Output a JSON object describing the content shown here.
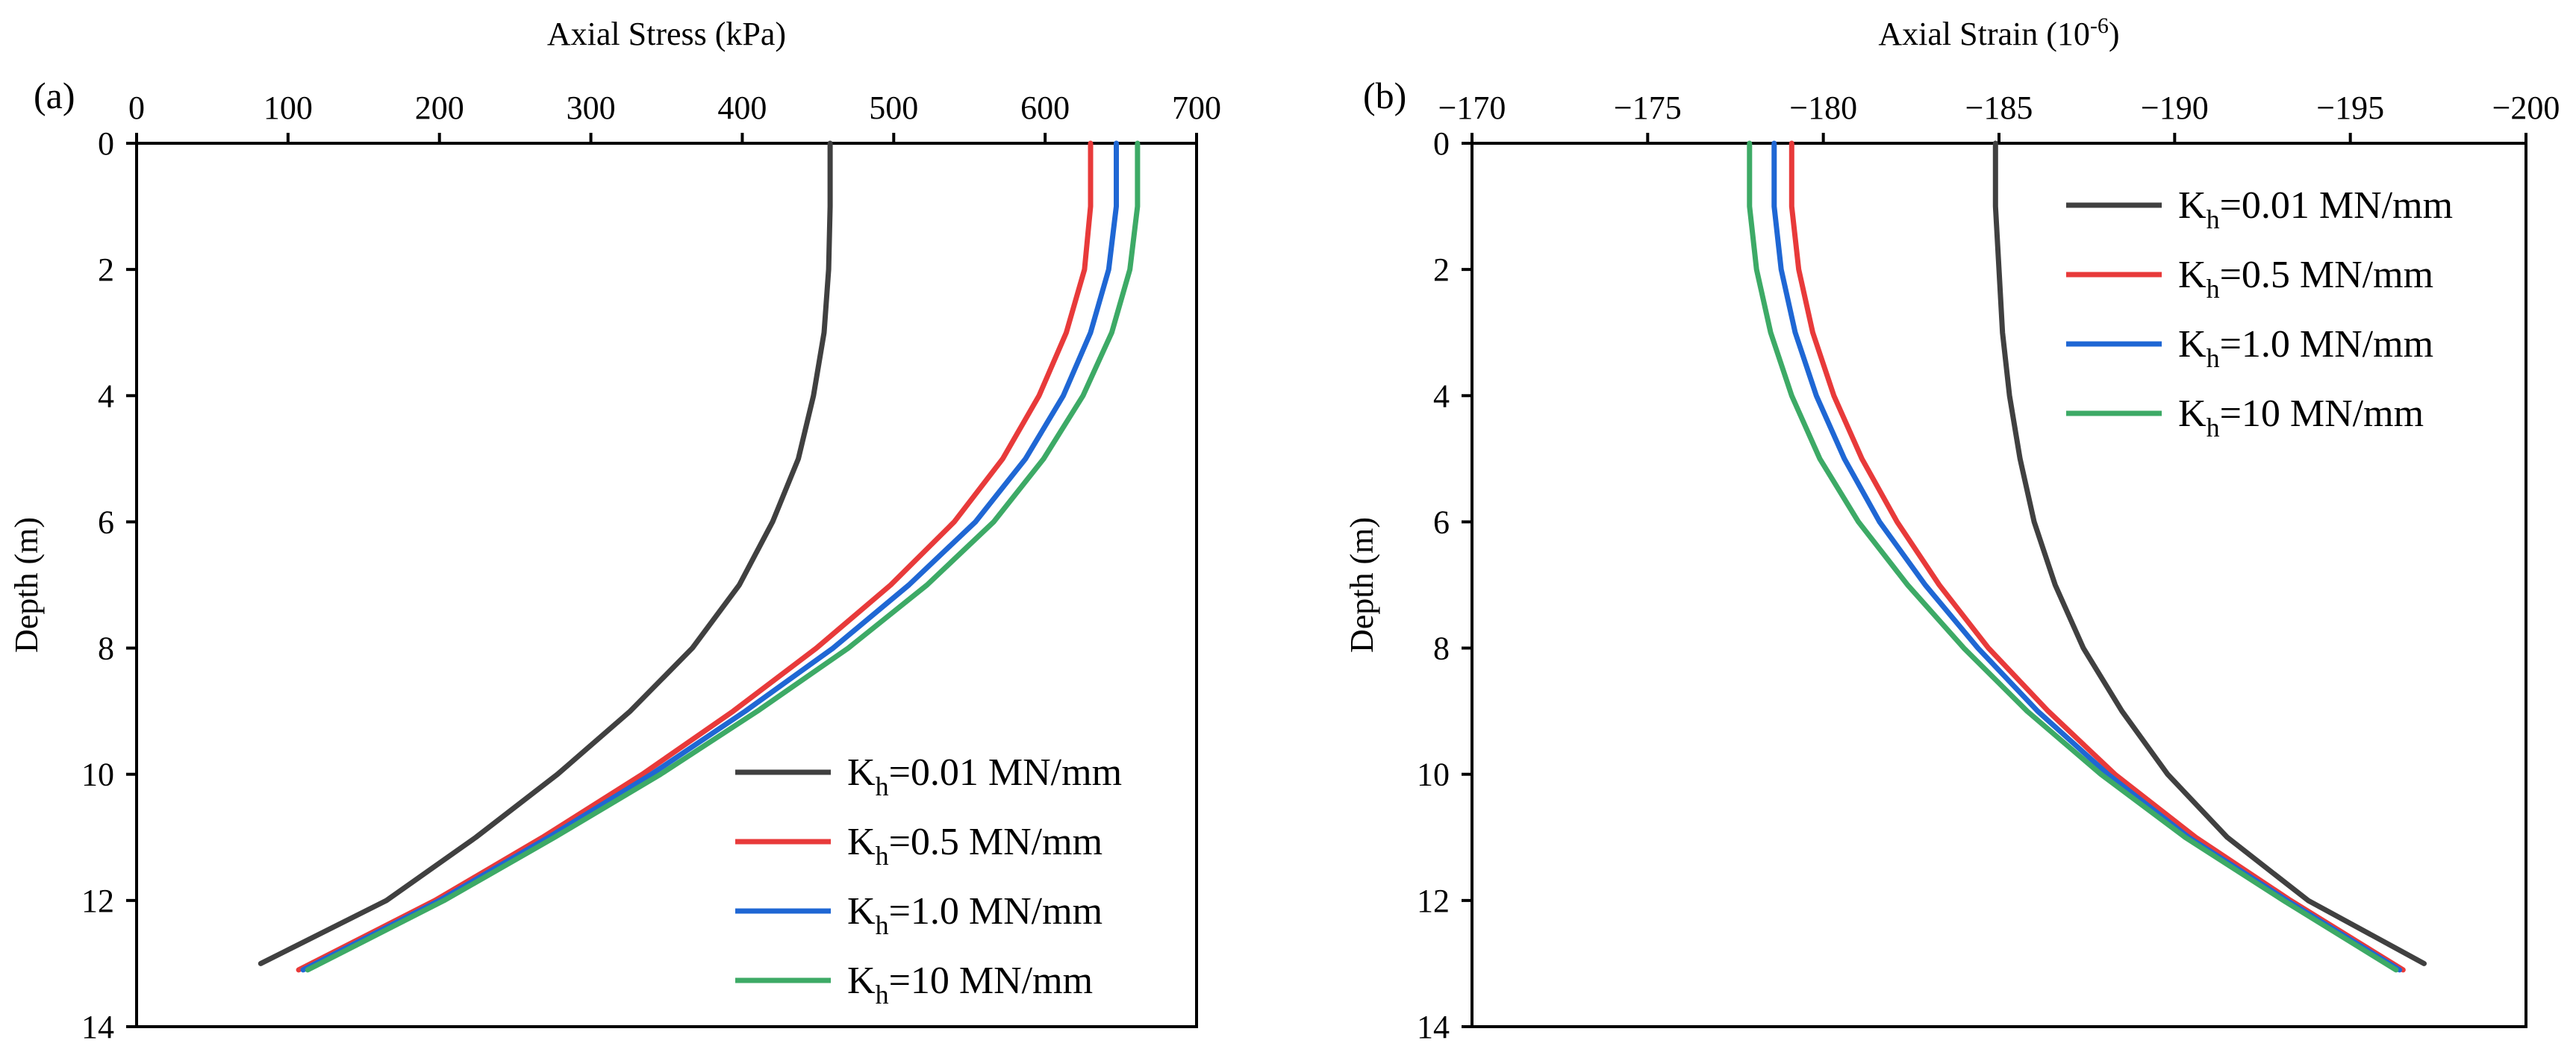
{
  "chart_data": [
    {
      "type": "line",
      "panel_label": "(a)",
      "title": "",
      "xlabel": "Axial Stress (kPa)",
      "ylabel": "Depth (m)",
      "xlim": [
        0,
        700
      ],
      "ylim": [
        0,
        14
      ],
      "x_ticks": [
        0,
        100,
        200,
        300,
        400,
        500,
        600,
        700
      ],
      "y_ticks": [
        0,
        2,
        4,
        6,
        8,
        10,
        12,
        14
      ],
      "x_axis_position": "top",
      "y_inverted": true,
      "legend_position": "bottom-right",
      "series": [
        {
          "name": "K",
          "sub": "h",
          "suffix": "=0.01 MN/mm",
          "color": "#404040",
          "points": [
            [
              458,
              0
            ],
            [
              458,
              1
            ],
            [
              457,
              2
            ],
            [
              454,
              3
            ],
            [
              447,
              4
            ],
            [
              437,
              5
            ],
            [
              420,
              6
            ],
            [
              398,
              7
            ],
            [
              367,
              8
            ],
            [
              326,
              9
            ],
            [
              278,
              10
            ],
            [
              224,
              11
            ],
            [
              165,
              12
            ],
            [
              82,
              13
            ]
          ]
        },
        {
          "name": "K",
          "sub": "h",
          "suffix": "=0.5 MN/mm",
          "color": "#e83a3a",
          "points": [
            [
              630,
              0
            ],
            [
              630,
              1
            ],
            [
              626,
              2
            ],
            [
              614,
              3
            ],
            [
              596,
              4
            ],
            [
              572,
              5
            ],
            [
              540,
              6
            ],
            [
              498,
              7
            ],
            [
              449,
              8
            ],
            [
              394,
              9
            ],
            [
              334,
              10
            ],
            [
              268,
              11
            ],
            [
              197,
              12
            ],
            [
              107,
              13.1
            ]
          ]
        },
        {
          "name": "K",
          "sub": "h",
          "suffix": "=1.0 MN/mm",
          "color": "#1f67d4",
          "points": [
            [
              647,
              0
            ],
            [
              647,
              1
            ],
            [
              642,
              2
            ],
            [
              630,
              3
            ],
            [
              612,
              4
            ],
            [
              587,
              5
            ],
            [
              554,
              6
            ],
            [
              510,
              7
            ],
            [
              460,
              8
            ],
            [
              402,
              9
            ],
            [
              340,
              10
            ],
            [
              272,
              11
            ],
            [
              200,
              12
            ],
            [
              110,
              13.1
            ]
          ]
        },
        {
          "name": "K",
          "sub": "h",
          "suffix": "=10 MN/mm",
          "color": "#3daa66",
          "points": [
            [
              661,
              0
            ],
            [
              661,
              1
            ],
            [
              656,
              2
            ],
            [
              644,
              3
            ],
            [
              625,
              4
            ],
            [
              599,
              5
            ],
            [
              566,
              6
            ],
            [
              522,
              7
            ],
            [
              470,
              8
            ],
            [
              410,
              9
            ],
            [
              346,
              10
            ],
            [
              276,
              11
            ],
            [
              203,
              12
            ],
            [
              113,
              13.1
            ]
          ]
        }
      ]
    },
    {
      "type": "line",
      "panel_label": "(b)",
      "title": "",
      "xlabel": "Axial Strain (10",
      "xlabel_sup": "-6",
      "xlabel_end": ")",
      "ylabel": "Depth (m)",
      "xlim": [
        -170,
        -200
      ],
      "ylim": [
        0,
        14
      ],
      "x_ticks": [
        -170,
        -175,
        -180,
        -185,
        -190,
        -195,
        -200
      ],
      "x_tick_labels": [
        "−170",
        "−175",
        "−180",
        "−185",
        "−190",
        "−195",
        "−200"
      ],
      "y_ticks": [
        0,
        2,
        4,
        6,
        8,
        10,
        12,
        14
      ],
      "x_axis_position": "top",
      "y_inverted": true,
      "legend_position": "top-right",
      "series": [
        {
          "name": "K",
          "sub": "h",
          "suffix": "=0.01 MN/mm",
          "color": "#404040",
          "points": [
            [
              -184.9,
              0
            ],
            [
              -184.9,
              1
            ],
            [
              -185.0,
              2
            ],
            [
              -185.1,
              3
            ],
            [
              -185.3,
              4
            ],
            [
              -185.6,
              5
            ],
            [
              -186.0,
              6
            ],
            [
              -186.6,
              7
            ],
            [
              -187.4,
              8
            ],
            [
              -188.5,
              9
            ],
            [
              -189.8,
              10
            ],
            [
              -191.5,
              11
            ],
            [
              -193.8,
              12
            ],
            [
              -197.1,
              13
            ]
          ]
        },
        {
          "name": "K",
          "sub": "h",
          "suffix": "=0.5 MN/mm",
          "color": "#e83a3a",
          "points": [
            [
              -179.1,
              0
            ],
            [
              -179.1,
              1
            ],
            [
              -179.3,
              2
            ],
            [
              -179.7,
              3
            ],
            [
              -180.3,
              4
            ],
            [
              -181.1,
              5
            ],
            [
              -182.1,
              6
            ],
            [
              -183.3,
              7
            ],
            [
              -184.7,
              8
            ],
            [
              -186.4,
              9
            ],
            [
              -188.3,
              10
            ],
            [
              -190.6,
              11
            ],
            [
              -193.3,
              12
            ],
            [
              -196.5,
              13.1
            ]
          ]
        },
        {
          "name": "K",
          "sub": "h",
          "suffix": "=1.0 MN/mm",
          "color": "#1f67d4",
          "points": [
            [
              -178.6,
              0
            ],
            [
              -178.6,
              1
            ],
            [
              -178.8,
              2
            ],
            [
              -179.2,
              3
            ],
            [
              -179.8,
              4
            ],
            [
              -180.6,
              5
            ],
            [
              -181.6,
              6
            ],
            [
              -182.9,
              7
            ],
            [
              -184.4,
              8
            ],
            [
              -186.1,
              9
            ],
            [
              -188.1,
              10
            ],
            [
              -190.4,
              11
            ],
            [
              -193.2,
              12
            ],
            [
              -196.4,
              13.1
            ]
          ]
        },
        {
          "name": "K",
          "sub": "h",
          "suffix": "=10 MN/mm",
          "color": "#3daa66",
          "points": [
            [
              -177.9,
              0
            ],
            [
              -177.9,
              1
            ],
            [
              -178.1,
              2
            ],
            [
              -178.5,
              3
            ],
            [
              -179.1,
              4
            ],
            [
              -179.9,
              5
            ],
            [
              -181.0,
              6
            ],
            [
              -182.4,
              7
            ],
            [
              -184.0,
              8
            ],
            [
              -185.8,
              9
            ],
            [
              -187.9,
              10
            ],
            [
              -190.3,
              11
            ],
            [
              -193.1,
              12
            ],
            [
              -196.3,
              13.1
            ]
          ]
        }
      ]
    }
  ]
}
